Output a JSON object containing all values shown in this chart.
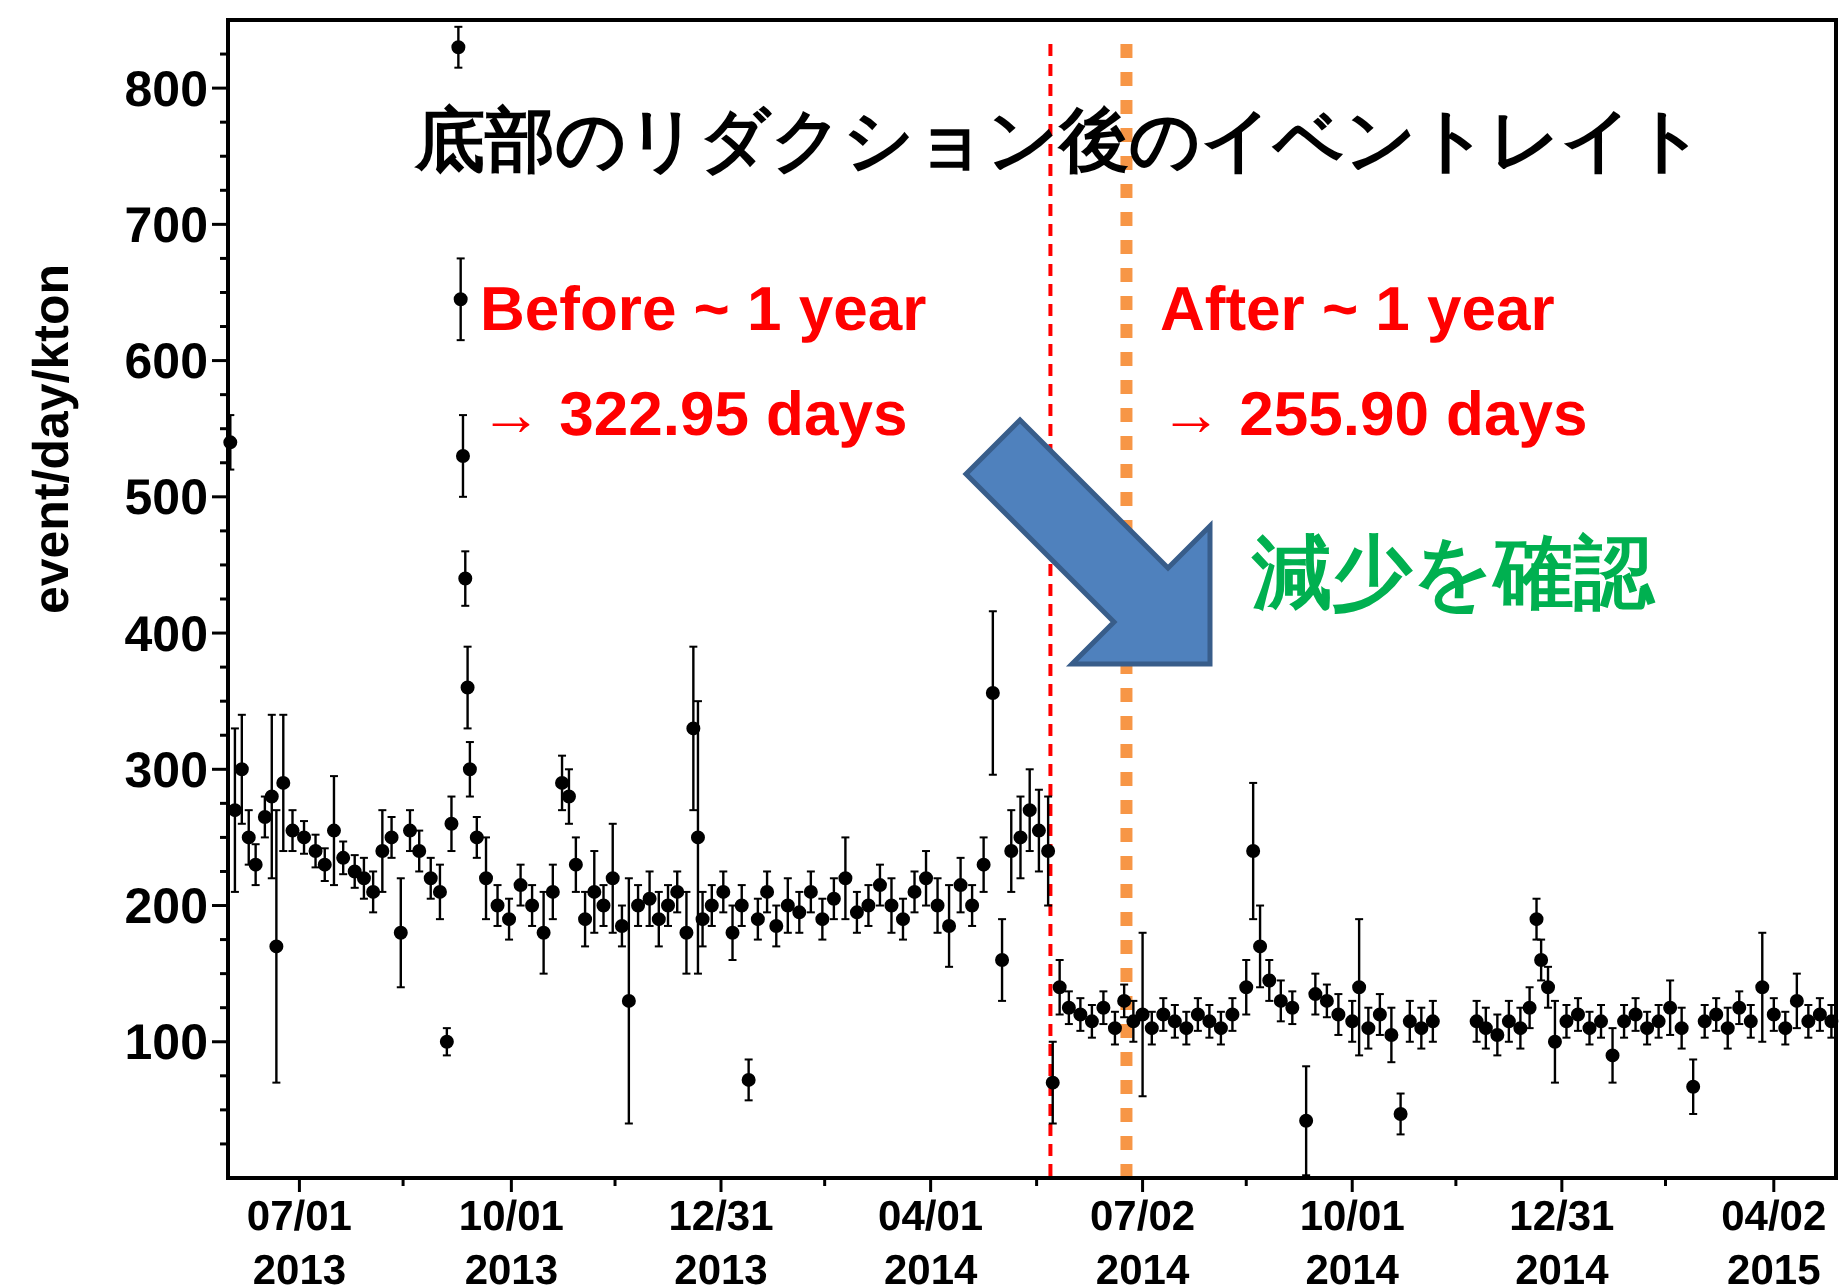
{
  "chart_data": {
    "type": "scatter",
    "title": "底部のリダクション後のイベントレイト",
    "ylabel": "event/day/kton",
    "annotations": [
      "Before ~ 1 year\n→ 322.95 days",
      "After ~ 1 year\n→ 255.90 days",
      "減少を確認"
    ],
    "marker": "circle",
    "grid": false,
    "xlim": [
      "2013-05-31",
      "2015-04-29"
    ],
    "xticks": [
      {
        "value": "2013-07-01",
        "label": "07/01\n2013"
      },
      {
        "value": "2013-10-01",
        "label": "10/01\n2013"
      },
      {
        "value": "2013-12-31",
        "label": "12/31\n2013"
      },
      {
        "value": "2014-04-01",
        "label": "04/01\n2014"
      },
      {
        "value": "2014-07-02",
        "label": "07/02\n2014"
      },
      {
        "value": "2014-10-01",
        "label": "10/01\n2014"
      },
      {
        "value": "2014-12-31",
        "label": "12/31\n2014"
      },
      {
        "value": "2015-04-02",
        "label": "04/02\n2015"
      },
      {
        "value": "2013-08-15",
        "label": null
      },
      {
        "value": "2013-11-15",
        "label": null
      },
      {
        "value": "2014-02-14",
        "label": null
      },
      {
        "value": "2014-05-17",
        "label": null
      },
      {
        "value": "2014-08-16",
        "label": null
      },
      {
        "value": "2014-11-15",
        "label": null
      },
      {
        "value": "2015-02-14",
        "label": null
      }
    ],
    "ylim": [
      0,
      850
    ],
    "yticks": [
      100,
      200,
      300,
      400,
      500,
      600,
      700,
      800,
      {
        "value": 25,
        "label": null
      },
      {
        "value": 50,
        "label": null
      },
      {
        "value": 75,
        "label": null
      },
      {
        "value": 125,
        "label": null
      },
      {
        "value": 150,
        "label": null
      },
      {
        "value": 175,
        "label": null
      },
      {
        "value": 225,
        "label": null
      },
      {
        "value": 250,
        "label": null
      },
      {
        "value": 275,
        "label": null
      },
      {
        "value": 325,
        "label": null
      },
      {
        "value": 350,
        "label": null
      },
      {
        "value": 375,
        "label": null
      },
      {
        "value": 425,
        "label": null
      },
      {
        "value": 450,
        "label": null
      },
      {
        "value": 475,
        "label": null
      },
      {
        "value": 525,
        "label": null
      },
      {
        "value": 550,
        "label": null
      },
      {
        "value": 575,
        "label": null
      },
      {
        "value": 625,
        "label": null
      },
      {
        "value": 650,
        "label": null
      },
      {
        "value": 675,
        "label": null
      },
      {
        "value": 725,
        "label": null
      },
      {
        "value": 750,
        "label": null
      },
      {
        "value": 775,
        "label": null
      },
      {
        "value": 825,
        "label": null
      }
    ],
    "ref_lines": [
      {
        "axis": "x",
        "value": "2014-05-23",
        "color": "#ff0000",
        "line_style": "dashed"
      },
      {
        "axis": "x",
        "value": "2014-06-25",
        "color": "#f79646",
        "line_style": "dotted"
      }
    ],
    "series": [
      {
        "color": "#000000",
        "x": [
          "2013-06-01",
          "2013-06-03",
          "2013-06-06",
          "2013-06-09",
          "2013-06-12",
          "2013-06-16",
          "2013-06-19",
          "2013-06-21",
          "2013-06-24",
          "2013-06-28",
          "2013-07-03",
          "2013-07-08",
          "2013-07-12",
          "2013-07-16",
          "2013-07-20",
          "2013-07-25",
          "2013-07-29",
          "2013-08-02",
          "2013-08-06",
          "2013-08-10",
          "2013-08-14",
          "2013-08-18",
          "2013-08-22",
          "2013-08-27",
          "2013-08-31",
          "2013-09-03",
          "2013-09-05",
          "2013-09-08",
          "2013-09-09",
          "2013-09-10",
          "2013-09-11",
          "2013-09-12",
          "2013-09-13",
          "2013-09-16",
          "2013-09-20",
          "2013-09-25",
          "2013-09-30",
          "2013-10-05",
          "2013-10-10",
          "2013-10-15",
          "2013-10-19",
          "2013-10-23",
          "2013-10-26",
          "2013-10-29",
          "2013-11-02",
          "2013-11-06",
          "2013-11-10",
          "2013-11-14",
          "2013-11-18",
          "2013-11-21",
          "2013-11-25",
          "2013-11-30",
          "2013-12-04",
          "2013-12-08",
          "2013-12-12",
          "2013-12-16",
          "2013-12-19",
          "2013-12-21",
          "2013-12-23",
          "2013-12-27",
          "2014-01-01",
          "2014-01-05",
          "2014-01-09",
          "2014-01-12",
          "2014-01-16",
          "2014-01-20",
          "2014-01-24",
          "2014-01-29",
          "2014-02-03",
          "2014-02-08",
          "2014-02-13",
          "2014-02-18",
          "2014-02-23",
          "2014-02-28",
          "2014-03-05",
          "2014-03-10",
          "2014-03-15",
          "2014-03-20",
          "2014-03-25",
          "2014-03-30",
          "2014-04-04",
          "2014-04-09",
          "2014-04-14",
          "2014-04-19",
          "2014-04-24",
          "2014-04-28",
          "2014-05-02",
          "2014-05-06",
          "2014-05-10",
          "2014-05-14",
          "2014-05-18",
          "2014-05-22",
          "2014-05-24",
          "2014-05-27",
          "2014-05-31",
          "2014-06-05",
          "2014-06-10",
          "2014-06-15",
          "2014-06-20",
          "2014-06-24",
          "2014-06-28",
          "2014-07-02",
          "2014-07-06",
          "2014-07-11",
          "2014-07-16",
          "2014-07-21",
          "2014-07-26",
          "2014-07-31",
          "2014-08-05",
          "2014-08-10",
          "2014-08-16",
          "2014-08-19",
          "2014-08-22",
          "2014-08-26",
          "2014-08-31",
          "2014-09-05",
          "2014-09-11",
          "2014-09-15",
          "2014-09-20",
          "2014-09-25",
          "2014-10-01",
          "2014-10-04",
          "2014-10-08",
          "2014-10-13",
          "2014-10-18",
          "2014-10-22",
          "2014-10-26",
          "2014-10-31",
          "2014-11-05",
          "2014-11-24",
          "2014-11-28",
          "2014-12-03",
          "2014-12-08",
          "2014-12-13",
          "2014-12-17",
          "2014-12-20",
          "2014-12-22",
          "2014-12-25",
          "2014-12-28",
          "2015-01-02",
          "2015-01-07",
          "2015-01-12",
          "2015-01-17",
          "2015-01-22",
          "2015-01-27",
          "2015-02-01",
          "2015-02-06",
          "2015-02-11",
          "2015-02-16",
          "2015-02-21",
          "2015-02-26",
          "2015-03-03",
          "2015-03-08",
          "2015-03-13",
          "2015-03-18",
          "2015-03-23",
          "2015-03-28",
          "2015-04-02",
          "2015-04-07",
          "2015-04-12",
          "2015-04-17",
          "2015-04-22",
          "2015-04-27"
        ],
        "values": [
          540,
          270,
          300,
          250,
          230,
          265,
          280,
          170,
          290,
          255,
          250,
          240,
          230,
          255,
          235,
          225,
          220,
          210,
          240,
          250,
          180,
          255,
          240,
          220,
          210,
          100,
          260,
          830,
          645,
          530,
          440,
          360,
          300,
          250,
          220,
          200,
          190,
          215,
          200,
          180,
          210,
          290,
          280,
          230,
          190,
          210,
          200,
          220,
          185,
          130,
          200,
          205,
          190,
          200,
          210,
          180,
          330,
          250,
          190,
          200,
          210,
          180,
          200,
          72,
          190,
          210,
          185,
          200,
          195,
          210,
          190,
          205,
          220,
          195,
          200,
          215,
          200,
          190,
          210,
          220,
          200,
          185,
          215,
          200,
          230,
          356,
          160,
          240,
          250,
          270,
          255,
          240,
          70,
          140,
          125,
          120,
          115,
          125,
          110,
          130,
          115,
          120,
          110,
          120,
          115,
          110,
          120,
          115,
          110,
          120,
          140,
          240,
          170,
          145,
          130,
          125,
          42,
          135,
          130,
          120,
          115,
          140,
          110,
          120,
          105,
          47,
          115,
          110,
          115,
          115,
          110,
          105,
          115,
          110,
          125,
          190,
          160,
          140,
          100,
          115,
          120,
          110,
          115,
          90,
          115,
          120,
          110,
          115,
          125,
          110,
          67,
          115,
          120,
          110,
          125,
          115,
          140,
          120,
          110,
          130,
          115,
          120,
          115
        ],
        "errors": [
          20,
          60,
          40,
          20,
          15,
          15,
          60,
          100,
          50,
          15,
          12,
          12,
          12,
          40,
          12,
          12,
          15,
          15,
          30,
          15,
          40,
          15,
          15,
          15,
          20,
          10,
          20,
          15,
          30,
          30,
          20,
          30,
          20,
          15,
          30,
          15,
          15,
          15,
          15,
          30,
          20,
          20,
          20,
          20,
          20,
          30,
          15,
          40,
          15,
          90,
          15,
          20,
          20,
          15,
          15,
          30,
          60,
          100,
          20,
          15,
          15,
          20,
          15,
          15,
          15,
          15,
          15,
          20,
          15,
          15,
          15,
          15,
          30,
          15,
          15,
          15,
          20,
          15,
          15,
          20,
          20,
          30,
          20,
          15,
          20,
          60,
          30,
          30,
          30,
          30,
          30,
          40,
          30,
          20,
          12,
          12,
          12,
          12,
          12,
          12,
          15,
          60,
          12,
          12,
          12,
          12,
          12,
          12,
          12,
          12,
          20,
          50,
          30,
          15,
          15,
          12,
          40,
          15,
          12,
          15,
          15,
          50,
          15,
          15,
          20,
          15,
          15,
          15,
          15,
          15,
          15,
          15,
          15,
          15,
          15,
          15,
          15,
          15,
          30,
          12,
          12,
          12,
          12,
          20,
          12,
          12,
          12,
          12,
          20,
          15,
          20,
          12,
          12,
          15,
          12,
          12,
          40,
          12,
          12,
          20,
          12,
          12,
          12
        ]
      }
    ]
  }
}
